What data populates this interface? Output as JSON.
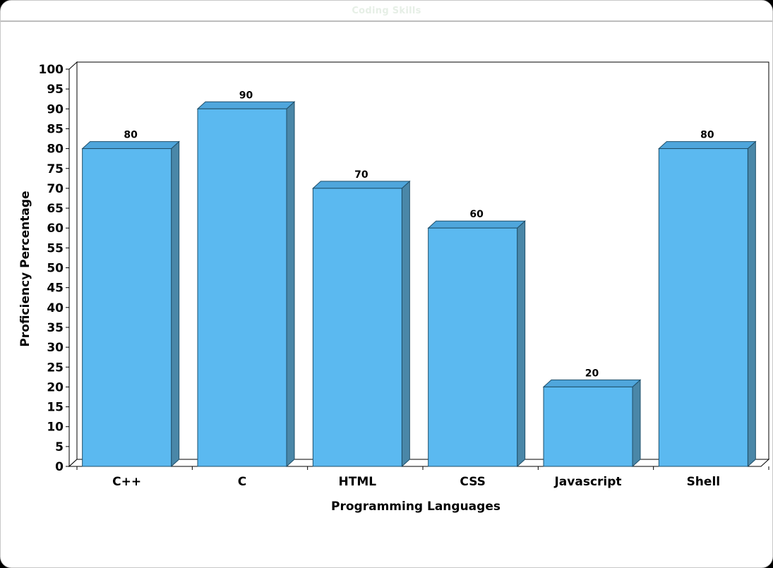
{
  "window": {
    "title": "Coding Skills"
  },
  "chart_data": {
    "type": "bar",
    "title": "Coding Skills",
    "xlabel": "Programming Languages",
    "ylabel": "Proficiency Percentage",
    "categories": [
      "C++",
      "C",
      "HTML",
      "CSS",
      "Javascript",
      "Shell"
    ],
    "values": [
      80,
      90,
      70,
      60,
      20,
      80
    ],
    "ylim": [
      0,
      100
    ],
    "ytick_step": 5,
    "show_value_labels": true,
    "grid": false,
    "bar_color": "#5bb9f0",
    "bar_side_color": "#4a87a8",
    "bar_top_color": "#4fa6dc"
  }
}
